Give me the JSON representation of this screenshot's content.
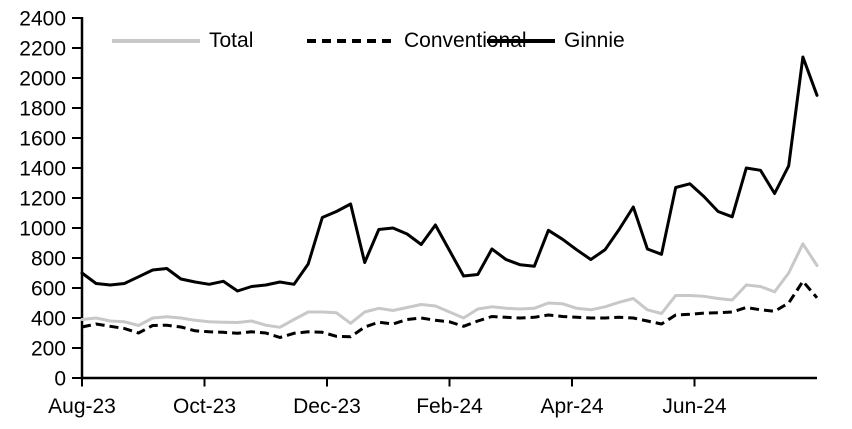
{
  "chart_data": {
    "type": "line",
    "title": "",
    "x_unit": "weekly",
    "x_span_months": 12,
    "x_ticks": [
      {
        "label": "Aug-23",
        "month": 0
      },
      {
        "label": "Oct-23",
        "month": 2
      },
      {
        "label": "Dec-23",
        "month": 4
      },
      {
        "label": "Feb-24",
        "month": 6
      },
      {
        "label": "Apr-24",
        "month": 8
      },
      {
        "label": "Jun-24",
        "month": 10
      }
    ],
    "ylim": [
      0,
      2400
    ],
    "y_tick_step": 200,
    "grid": false,
    "legend_position": "top",
    "axis_color": "#000000",
    "background": "#ffffff",
    "series": [
      {
        "name": "Total",
        "color": "#c8c8c8",
        "dash": false,
        "values": [
          390,
          400,
          380,
          375,
          350,
          400,
          408,
          400,
          385,
          375,
          372,
          370,
          380,
          352,
          338,
          390,
          440,
          440,
          435,
          365,
          440,
          465,
          450,
          470,
          490,
          480,
          440,
          400,
          460,
          475,
          465,
          460,
          465,
          500,
          495,
          465,
          455,
          475,
          505,
          530,
          455,
          430,
          550,
          550,
          545,
          530,
          520,
          620,
          610,
          575,
          700,
          895,
          750
        ]
      },
      {
        "name": "Conventional",
        "color": "#000000",
        "dash": true,
        "values": [
          340,
          360,
          345,
          330,
          300,
          350,
          352,
          340,
          315,
          308,
          305,
          298,
          308,
          300,
          270,
          298,
          308,
          305,
          278,
          275,
          340,
          372,
          360,
          390,
          400,
          385,
          375,
          345,
          380,
          410,
          405,
          400,
          405,
          420,
          410,
          405,
          400,
          400,
          405,
          400,
          380,
          360,
          420,
          425,
          433,
          435,
          440,
          470,
          455,
          445,
          500,
          645,
          535
        ]
      },
      {
        "name": "Ginnie",
        "color": "#000000",
        "dash": false,
        "values": [
          700,
          630,
          620,
          630,
          675,
          720,
          730,
          660,
          640,
          625,
          645,
          580,
          610,
          620,
          640,
          625,
          760,
          1070,
          1110,
          1160,
          770,
          990,
          1000,
          960,
          890,
          1020,
          850,
          680,
          690,
          860,
          790,
          755,
          745,
          985,
          925,
          855,
          790,
          855,
          990,
          1140,
          860,
          825,
          1270,
          1295,
          1210,
          1110,
          1075,
          1400,
          1385,
          1230,
          1415,
          2140,
          1885
        ]
      }
    ]
  }
}
